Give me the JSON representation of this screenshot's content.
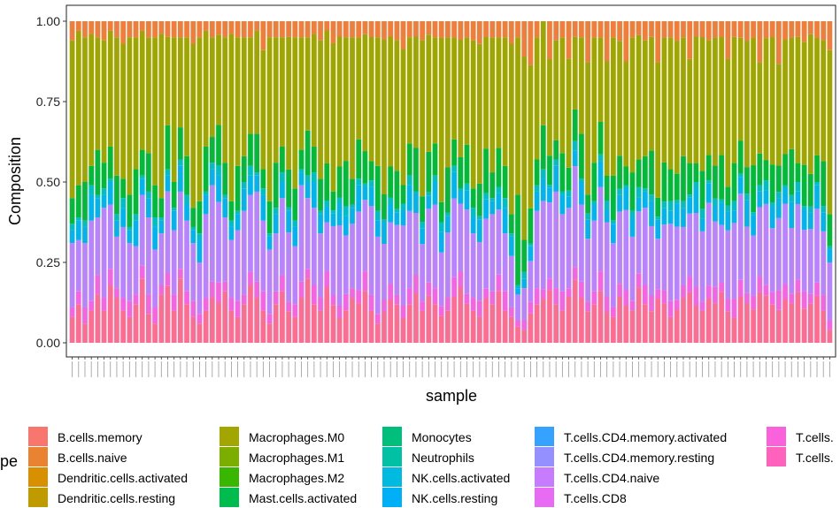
{
  "chart_data": {
    "type": "bar",
    "stacked": true,
    "normalized": true,
    "title": "",
    "xlabel": "sample",
    "ylabel": "Composition",
    "ylim": [
      0,
      1
    ],
    "yticks": [
      "0.00",
      "0.25",
      "0.50",
      "0.75",
      "1.00"
    ],
    "n_samples": 120,
    "grid": false,
    "legend": {
      "position": "bottom",
      "title_visible_fragment": "pe",
      "entries": [
        {
          "name": "B.cells.memory",
          "color": "#F8766D"
        },
        {
          "name": "B.cells.naive",
          "color": "#EA8331"
        },
        {
          "name": "Dendritic.cells.activated",
          "color": "#D89000"
        },
        {
          "name": "Dendritic.cells.resting",
          "color": "#C09B00"
        },
        {
          "name": "Macrophages.M0",
          "color": "#A3A500"
        },
        {
          "name": "Macrophages.M1",
          "color": "#7CAE00"
        },
        {
          "name": "Macrophages.M2",
          "color": "#39B600"
        },
        {
          "name": "Mast.cells.activated",
          "color": "#00BB4E"
        },
        {
          "name": "Monocytes",
          "color": "#00BF7D"
        },
        {
          "name": "Neutrophils",
          "color": "#00C1A3"
        },
        {
          "name": "NK.cells.activated",
          "color": "#00BAE0"
        },
        {
          "name": "NK.cells.resting",
          "color": "#00B0F6"
        },
        {
          "name": "T.cells.CD4.memory.activated",
          "color": "#35A2FF"
        },
        {
          "name": "T.cells.CD4.memory.resting",
          "color": "#9590FF"
        },
        {
          "name": "T.cells.CD4.naive",
          "color": "#C77CFF"
        },
        {
          "name": "T.cells.CD8",
          "color": "#E76BF3"
        },
        {
          "name": "T.cells.",
          "color": "#FA62DB"
        },
        {
          "name": "T.cells.",
          "color": "#FF62BC"
        }
      ]
    },
    "stack_order_bottom_to_top": [
      "pink",
      "magenta",
      "lavender",
      "blue",
      "teal",
      "green",
      "olive",
      "orange"
    ],
    "series": [
      {
        "name": "pink_base",
        "color": "#FF6C91",
        "values": [
          0.08,
          0.12,
          0.06,
          0.1,
          0.15,
          0.1,
          0.18,
          0.14,
          0.1,
          0.08,
          0.12,
          0.2,
          0.09,
          0.06,
          0.15,
          0.18,
          0.1,
          0.2,
          0.12,
          0.08,
          0.06,
          0.1,
          0.14,
          0.12,
          0.16,
          0.1,
          0.08,
          0.12,
          0.18,
          0.14,
          0.1,
          0.06,
          0.12,
          0.16,
          0.1,
          0.08,
          0.14,
          0.2,
          0.12,
          0.1,
          0.18,
          0.12,
          0.08,
          0.1,
          0.14,
          0.12,
          0.16,
          0.1,
          0.06,
          0.1,
          0.14,
          0.12,
          0.08,
          0.12,
          0.16,
          0.1,
          0.14,
          0.12,
          0.08,
          0.1,
          0.14,
          0.18,
          0.12,
          0.1,
          0.08,
          0.14,
          0.12,
          0.16,
          0.1,
          0.08,
          0.05,
          0.04,
          0.1,
          0.12,
          0.14,
          0.18,
          0.12,
          0.1,
          0.16,
          0.2,
          0.14,
          0.1,
          0.12,
          0.16,
          0.1,
          0.08,
          0.14,
          0.12,
          0.1,
          0.16,
          0.12,
          0.1,
          0.14,
          0.12,
          0.08,
          0.1,
          0.14,
          0.16,
          0.12,
          0.1,
          0.14,
          0.12,
          0.16,
          0.1,
          0.08,
          0.14,
          0.12,
          0.1,
          0.16,
          0.14,
          0.12,
          0.1,
          0.14,
          0.12,
          0.16,
          0.1,
          0.12,
          0.14,
          0.1,
          0.04
        ]
      },
      {
        "name": "magenta",
        "color": "#F564E3",
        "values": [
          0.03,
          0.04,
          0.05,
          0.03,
          0.06,
          0.04,
          0.05,
          0.03,
          0.04,
          0.05,
          0.03,
          0.04,
          0.06,
          0.05,
          0.03,
          0.04,
          0.05,
          0.03,
          0.04,
          0.05,
          0.03,
          0.04,
          0.05,
          0.06,
          0.03,
          0.04,
          0.05,
          0.03,
          0.04,
          0.05,
          0.06,
          0.03,
          0.04,
          0.05,
          0.03,
          0.04,
          0.05,
          0.03,
          0.06,
          0.04,
          0.05,
          0.03,
          0.04,
          0.05,
          0.03,
          0.04,
          0.06,
          0.05,
          0.03,
          0.04,
          0.05,
          0.03,
          0.04,
          0.05,
          0.06,
          0.03,
          0.04,
          0.05,
          0.03,
          0.04,
          0.06,
          0.05,
          0.03,
          0.04,
          0.05,
          0.03,
          0.04,
          0.05,
          0.06,
          0.03,
          0.02,
          0.03,
          0.04,
          0.05,
          0.03,
          0.04,
          0.05,
          0.06,
          0.03,
          0.04,
          0.05,
          0.03,
          0.04,
          0.06,
          0.05,
          0.03,
          0.04,
          0.05,
          0.03,
          0.04,
          0.06,
          0.05,
          0.03,
          0.04,
          0.05,
          0.03,
          0.04,
          0.05,
          0.06,
          0.03,
          0.04,
          0.05,
          0.03,
          0.04,
          0.06,
          0.05,
          0.03,
          0.04,
          0.05,
          0.03,
          0.04,
          0.06,
          0.05,
          0.03,
          0.04,
          0.05,
          0.03,
          0.04,
          0.05,
          0.03
        ]
      },
      {
        "name": "lavender",
        "color": "#B983FF",
        "values": [
          0.2,
          0.16,
          0.2,
          0.25,
          0.18,
          0.28,
          0.2,
          0.16,
          0.22,
          0.18,
          0.15,
          0.22,
          0.24,
          0.18,
          0.16,
          0.26,
          0.2,
          0.24,
          0.22,
          0.18,
          0.16,
          0.26,
          0.3,
          0.24,
          0.2,
          0.18,
          0.22,
          0.26,
          0.24,
          0.28,
          0.22,
          0.2,
          0.18,
          0.24,
          0.22,
          0.18,
          0.3,
          0.22,
          0.24,
          0.2,
          0.16,
          0.22,
          0.26,
          0.18,
          0.2,
          0.24,
          0.22,
          0.28,
          0.24,
          0.18,
          0.2,
          0.22,
          0.26,
          0.24,
          0.2,
          0.18,
          0.22,
          0.26,
          0.16,
          0.2,
          0.24,
          0.22,
          0.26,
          0.2,
          0.18,
          0.22,
          0.24,
          0.2,
          0.18,
          0.16,
          0.08,
          0.1,
          0.14,
          0.24,
          0.28,
          0.26,
          0.3,
          0.24,
          0.28,
          0.32,
          0.24,
          0.2,
          0.22,
          0.26,
          0.24,
          0.2,
          0.22,
          0.26,
          0.2,
          0.18,
          0.24,
          0.22,
          0.16,
          0.2,
          0.24,
          0.22,
          0.18,
          0.2,
          0.24,
          0.22,
          0.26,
          0.2,
          0.18,
          0.22,
          0.24,
          0.26,
          0.2,
          0.18,
          0.22,
          0.24,
          0.2,
          0.22,
          0.26,
          0.2,
          0.24,
          0.18,
          0.2,
          0.22,
          0.2,
          0.18
        ]
      },
      {
        "name": "blue",
        "color": "#00B4EF",
        "values": [
          0.04,
          0.06,
          0.05,
          0.08,
          0.06,
          0.04,
          0.07,
          0.05,
          0.06,
          0.04,
          0.08,
          0.05,
          0.06,
          0.07,
          0.04,
          0.05,
          0.06,
          0.08,
          0.05,
          0.04,
          0.07,
          0.06,
          0.05,
          0.08,
          0.06,
          0.04,
          0.05,
          0.07,
          0.06,
          0.05,
          0.08,
          0.04,
          0.06,
          0.05,
          0.07,
          0.06,
          0.04,
          0.05,
          0.08,
          0.06,
          0.05,
          0.04,
          0.07,
          0.06,
          0.05,
          0.08,
          0.04,
          0.06,
          0.05,
          0.07,
          0.06,
          0.04,
          0.05,
          0.08,
          0.06,
          0.05,
          0.04,
          0.07,
          0.06,
          0.05,
          0.08,
          0.04,
          0.06,
          0.05,
          0.07,
          0.06,
          0.04,
          0.05,
          0.08,
          0.06,
          0.02,
          0.03,
          0.05,
          0.06,
          0.07,
          0.05,
          0.08,
          0.06,
          0.04,
          0.05,
          0.07,
          0.06,
          0.05,
          0.08,
          0.04,
          0.06,
          0.05,
          0.07,
          0.06,
          0.04,
          0.05,
          0.08,
          0.06,
          0.05,
          0.04,
          0.07,
          0.06,
          0.05,
          0.08,
          0.04,
          0.06,
          0.05,
          0.07,
          0.06,
          0.04,
          0.05,
          0.08,
          0.06,
          0.05,
          0.04,
          0.07,
          0.06,
          0.05,
          0.08,
          0.04,
          0.06,
          0.05,
          0.07,
          0.06,
          0.04
        ]
      },
      {
        "name": "teal",
        "color": "#00BFC4",
        "values": [
          0.02,
          0.01,
          0.02,
          0.03,
          0.01,
          0.02,
          0.01,
          0.02,
          0.03,
          0.01,
          0.02,
          0.01,
          0.02,
          0.03,
          0.01,
          0.02,
          0.01,
          0.02,
          0.03,
          0.01,
          0.02,
          0.01,
          0.02,
          0.03,
          0.01,
          0.02,
          0.01,
          0.02,
          0.03,
          0.01,
          0.02,
          0.01,
          0.02,
          0.03,
          0.01,
          0.02,
          0.01,
          0.02,
          0.03,
          0.01,
          0.02,
          0.01,
          0.02,
          0.03,
          0.01,
          0.02,
          0.01,
          0.02,
          0.03,
          0.01,
          0.02,
          0.01,
          0.02,
          0.03,
          0.01,
          0.02,
          0.01,
          0.02,
          0.03,
          0.01,
          0.02,
          0.01,
          0.02,
          0.03,
          0.01,
          0.02,
          0.01,
          0.02,
          0.03,
          0.01,
          0.01,
          0.02,
          0.01,
          0.02,
          0.03,
          0.01,
          0.02,
          0.01,
          0.02,
          0.03,
          0.01,
          0.02,
          0.01,
          0.02,
          0.03,
          0.01,
          0.02,
          0.01,
          0.02,
          0.03,
          0.01,
          0.02,
          0.01,
          0.02,
          0.03,
          0.01,
          0.02,
          0.01,
          0.02,
          0.03,
          0.01,
          0.02,
          0.01,
          0.02,
          0.03,
          0.01,
          0.02,
          0.01,
          0.02,
          0.03,
          0.01,
          0.02,
          0.01,
          0.02,
          0.03,
          0.01,
          0.02,
          0.01,
          0.02,
          0.01
        ]
      },
      {
        "name": "green",
        "color": "#00BA38",
        "values": [
          0.08,
          0.1,
          0.12,
          0.06,
          0.14,
          0.08,
          0.1,
          0.12,
          0.06,
          0.1,
          0.14,
          0.08,
          0.12,
          0.1,
          0.06,
          0.14,
          0.08,
          0.1,
          0.12,
          0.06,
          0.1,
          0.14,
          0.08,
          0.12,
          0.1,
          0.06,
          0.14,
          0.08,
          0.1,
          0.12,
          0.06,
          0.1,
          0.14,
          0.08,
          0.12,
          0.1,
          0.06,
          0.14,
          0.08,
          0.1,
          0.12,
          0.06,
          0.1,
          0.14,
          0.08,
          0.12,
          0.1,
          0.06,
          0.14,
          0.08,
          0.1,
          0.12,
          0.06,
          0.1,
          0.14,
          0.08,
          0.12,
          0.1,
          0.06,
          0.14,
          0.08,
          0.1,
          0.12,
          0.06,
          0.1,
          0.14,
          0.08,
          0.12,
          0.1,
          0.06,
          0.28,
          0.1,
          0.12,
          0.08,
          0.14,
          0.1,
          0.06,
          0.12,
          0.08,
          0.1,
          0.14,
          0.06,
          0.12,
          0.1,
          0.08,
          0.14,
          0.1,
          0.06,
          0.12,
          0.08,
          0.1,
          0.14,
          0.06,
          0.12,
          0.1,
          0.08,
          0.14,
          0.1,
          0.06,
          0.12,
          0.08,
          0.1,
          0.14,
          0.06,
          0.12,
          0.1,
          0.08,
          0.14,
          0.1,
          0.06,
          0.12,
          0.08,
          0.1,
          0.14,
          0.06,
          0.12,
          0.1,
          0.08,
          0.14,
          0.1
        ]
      },
      {
        "name": "olive",
        "color": "#9FA600",
        "values": [
          0.49,
          0.48,
          0.45,
          0.41,
          0.35,
          0.38,
          0.36,
          0.43,
          0.42,
          0.49,
          0.41,
          0.37,
          0.36,
          0.46,
          0.51,
          0.28,
          0.45,
          0.28,
          0.37,
          0.51,
          0.51,
          0.36,
          0.31,
          0.27,
          0.39,
          0.52,
          0.4,
          0.37,
          0.3,
          0.32,
          0.37,
          0.51,
          0.39,
          0.34,
          0.42,
          0.47,
          0.35,
          0.29,
          0.35,
          0.43,
          0.43,
          0.47,
          0.42,
          0.38,
          0.44,
          0.31,
          0.36,
          0.39,
          0.4,
          0.5,
          0.42,
          0.41,
          0.44,
          0.33,
          0.36,
          0.49,
          0.35,
          0.33,
          0.49,
          0.4,
          0.31,
          0.38,
          0.33,
          0.46,
          0.43,
          0.35,
          0.42,
          0.34,
          0.4,
          0.53,
          0.49,
          0.57,
          0.49,
          0.38,
          0.33,
          0.33,
          0.31,
          0.36,
          0.38,
          0.23,
          0.3,
          0.42,
          0.39,
          0.26,
          0.37,
          0.43,
          0.35,
          0.34,
          0.42,
          0.36,
          0.36,
          0.36,
          0.43,
          0.38,
          0.41,
          0.4,
          0.37,
          0.33,
          0.41,
          0.42,
          0.36,
          0.39,
          0.37,
          0.41,
          0.4,
          0.31,
          0.38,
          0.38,
          0.29,
          0.36,
          0.4,
          0.31,
          0.37,
          0.34,
          0.4,
          0.36,
          0.43,
          0.35,
          0.38,
          0.51
        ]
      },
      {
        "name": "orange",
        "color": "#F07E3A",
        "values": [
          0.06,
          0.03,
          0.05,
          0.04,
          0.05,
          0.06,
          0.03,
          0.05,
          0.07,
          0.05,
          0.05,
          0.03,
          0.05,
          0.05,
          0.04,
          0.05,
          0.05,
          0.05,
          0.05,
          0.07,
          0.05,
          0.03,
          0.05,
          0.04,
          0.05,
          0.04,
          0.05,
          0.05,
          0.05,
          0.03,
          0.09,
          0.05,
          0.05,
          0.05,
          0.05,
          0.05,
          0.05,
          0.05,
          0.04,
          0.06,
          0.03,
          0.07,
          0.05,
          0.05,
          0.05,
          0.05,
          0.04,
          0.05,
          0.05,
          0.06,
          0.05,
          0.06,
          0.09,
          0.05,
          0.05,
          0.06,
          0.04,
          0.05,
          0.05,
          0.05,
          0.05,
          0.06,
          0.05,
          0.06,
          0.07,
          0.05,
          0.05,
          0.05,
          0.05,
          0.07,
          0.05,
          0.11,
          0.15,
          0.05,
          0.0,
          0.13,
          0.06,
          0.05,
          0.13,
          0.05,
          0.05,
          0.13,
          0.05,
          0.05,
          0.13,
          0.05,
          0.06,
          0.13,
          0.05,
          0.04,
          0.06,
          0.05,
          0.13,
          0.05,
          0.05,
          0.06,
          0.05,
          0.12,
          0.05,
          0.05,
          0.06,
          0.05,
          0.05,
          0.12,
          0.05,
          0.05,
          0.06,
          0.05,
          0.13,
          0.05,
          0.05,
          0.13,
          0.06,
          0.05,
          0.05,
          0.06,
          0.04,
          0.05,
          0.06,
          0.09
        ]
      }
    ]
  }
}
